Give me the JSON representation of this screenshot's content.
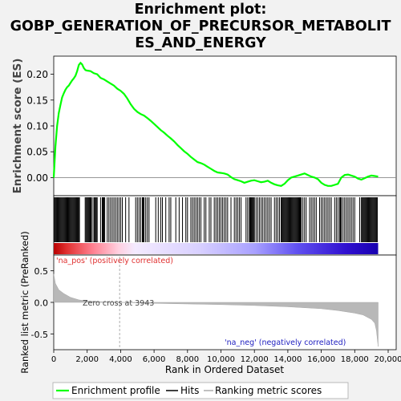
{
  "title_lines": [
    "Enrichment plot:",
    "GOBP_GENERATION_OF_PRECURSOR_METABOLIT",
    "ES_AND_ENERGY"
  ],
  "chart_data": {
    "type": "line",
    "title": "Enrichment plot: GOBP_GENERATION_OF_PRECURSOR_METABOLITES_AND_ENERGY",
    "xlabel": "Rank in Ordered Dataset",
    "xlim": [
      0,
      20000
    ],
    "x_ticks": [
      0,
      2000,
      4000,
      6000,
      8000,
      10000,
      12000,
      14000,
      16000,
      18000,
      20000
    ],
    "x_tick_labels": [
      "0",
      "2,000",
      "4,000",
      "6,000",
      "8,000",
      "10,000",
      "12,000",
      "14,000",
      "16,000",
      "18,000",
      "20,000"
    ],
    "n_genes": 19400,
    "es_panel": {
      "ylabel": "Enrichment score (ES)",
      "ylim": [
        -0.035,
        0.235
      ],
      "y_ticks": [
        0.0,
        0.05,
        0.1,
        0.15,
        0.2
      ],
      "y_tick_labels": [
        "0.00",
        "0.05",
        "0.10",
        "0.15",
        "0.20"
      ],
      "series": [
        {
          "name": "Enrichment profile",
          "color": "#00ff00",
          "x": [
            0,
            100,
            200,
            300,
            400,
            500,
            600,
            700,
            800,
            900,
            1000,
            1100,
            1200,
            1300,
            1400,
            1500,
            1600,
            1700,
            1800,
            1900,
            2000,
            2200,
            2400,
            2600,
            2800,
            3000,
            3200,
            3400,
            3600,
            3800,
            4000,
            4200,
            4400,
            4600,
            4800,
            5000,
            5200,
            5400,
            5600,
            5800,
            6000,
            6200,
            6400,
            6600,
            6800,
            7000,
            7200,
            7400,
            7600,
            7800,
            8000,
            8200,
            8400,
            8600,
            8800,
            9000,
            9200,
            9400,
            9600,
            9800,
            10000,
            10200,
            10400,
            10600,
            10800,
            11000,
            11200,
            11400,
            11600,
            11800,
            12000,
            12200,
            12400,
            12600,
            12800,
            13000,
            13200,
            13400,
            13600,
            13800,
            14000,
            14200,
            14400,
            14600,
            14800,
            15000,
            15200,
            15400,
            15600,
            15800,
            16000,
            16200,
            16400,
            16600,
            16800,
            17000,
            17200,
            17400,
            17600,
            17800,
            18000,
            18200,
            18400,
            18600,
            18800,
            19000,
            19200,
            19400
          ],
          "y": [
            0.0,
            0.06,
            0.1,
            0.125,
            0.14,
            0.155,
            0.163,
            0.17,
            0.175,
            0.178,
            0.183,
            0.188,
            0.192,
            0.197,
            0.206,
            0.218,
            0.222,
            0.219,
            0.212,
            0.208,
            0.207,
            0.206,
            0.202,
            0.2,
            0.193,
            0.19,
            0.186,
            0.182,
            0.178,
            0.172,
            0.168,
            0.162,
            0.153,
            0.142,
            0.133,
            0.127,
            0.123,
            0.12,
            0.115,
            0.11,
            0.104,
            0.098,
            0.092,
            0.087,
            0.081,
            0.076,
            0.07,
            0.063,
            0.057,
            0.051,
            0.046,
            0.04,
            0.035,
            0.03,
            0.028,
            0.025,
            0.021,
            0.017,
            0.013,
            0.01,
            0.009,
            0.008,
            0.006,
            0.001,
            -0.003,
            -0.005,
            -0.007,
            -0.01,
            -0.008,
            -0.006,
            -0.005,
            -0.007,
            -0.009,
            -0.008,
            -0.006,
            -0.01,
            -0.013,
            -0.015,
            -0.016,
            -0.012,
            -0.005,
            0.0,
            0.002,
            0.004,
            0.006,
            0.008,
            0.005,
            0.002,
            0.0,
            -0.003,
            -0.01,
            -0.014,
            -0.016,
            -0.016,
            -0.014,
            -0.012,
            0.0,
            0.005,
            0.006,
            0.004,
            0.002,
            -0.002,
            -0.004,
            -0.001,
            0.002,
            0.004,
            0.003,
            0.002
          ]
        }
      ]
    },
    "hits_legend": "Hits",
    "hits_ranks": [
      40,
      90,
      140,
      190,
      240,
      290,
      340,
      390,
      440,
      490,
      540,
      590,
      640,
      690,
      740,
      790,
      840,
      890,
      940,
      990,
      1040,
      1090,
      1140,
      1190,
      1240,
      1290,
      1340,
      1390,
      1440,
      1490,
      1540,
      1880,
      1930,
      1980,
      2030,
      2080,
      2130,
      2180,
      2230,
      2300,
      2400,
      2450,
      2500,
      2550,
      2600,
      2800,
      2900,
      2950,
      3000,
      3050,
      3200,
      3300,
      3400,
      3500,
      3600,
      3700,
      3800,
      3900,
      4000,
      4100,
      4300,
      4500,
      4900,
      5000,
      5100,
      5200,
      5300,
      5350,
      5400,
      5500,
      5600,
      5700,
      6100,
      6250,
      6400,
      6500,
      6700,
      6900,
      7000,
      7300,
      7500,
      7700,
      7900,
      8000,
      8200,
      8300,
      8400,
      8500,
      8600,
      8700,
      8800,
      9000,
      9100,
      9300,
      9400,
      9600,
      9700,
      9800,
      9900,
      10000,
      10100,
      10200,
      10300,
      10400,
      10600,
      10800,
      10900,
      11000,
      11100,
      11200,
      11500,
      11600,
      11700,
      11750,
      11800,
      11850,
      11900,
      11950,
      12000,
      12100,
      12200,
      12300,
      12400,
      12500,
      12600,
      12700,
      12800,
      12900,
      13000,
      13200,
      13300,
      13400,
      13500,
      13600,
      13650,
      13700,
      13750,
      13800,
      13850,
      13900,
      13950,
      14000,
      14050,
      14100,
      14150,
      14200,
      14250,
      14300,
      14350,
      14400,
      14450,
      14500,
      14550,
      14600,
      14650,
      14700,
      14750,
      14800,
      14900,
      15000,
      15100,
      15300,
      15400,
      15500,
      15600,
      15700,
      15900,
      16000,
      16100,
      16200,
      16300,
      16400,
      16500,
      16600,
      16800,
      16900,
      17000,
      17100,
      17150,
      17200,
      17300,
      17400,
      17500,
      17600,
      17700,
      17800,
      17900,
      18000,
      18300,
      18400,
      18450,
      18500,
      18550,
      18600,
      18650,
      18700,
      18750,
      18800,
      18850,
      18900,
      18950,
      19000,
      19050,
      19100,
      19150,
      19200,
      19250,
      19300,
      19350
    ],
    "metric_panel": {
      "ylabel": "Ranked list metric (PreRanked)",
      "series_name": "Ranking metric scores",
      "ylim": [
        -0.75,
        0.75
      ],
      "y_ticks": [
        0.5,
        0.0,
        -0.5
      ],
      "y_tick_labels": [
        "0.5",
        "0.0",
        "-0.5"
      ],
      "x": [
        0,
        100,
        300,
        600,
        1000,
        1500,
        2000,
        3000,
        3943,
        6000,
        8000,
        10000,
        12000,
        14000,
        16000,
        17000,
        18000,
        18500,
        19000,
        19200,
        19300,
        19400
      ],
      "y": [
        0.45,
        0.3,
        0.2,
        0.14,
        0.08,
        0.04,
        0.02,
        0.008,
        0.0,
        -0.015,
        -0.025,
        -0.035,
        -0.05,
        -0.07,
        -0.1,
        -0.13,
        -0.17,
        -0.2,
        -0.27,
        -0.33,
        -0.45,
        -0.7
      ],
      "pos_label": "'na_pos' (positively correlated)",
      "neg_label": "'na_neg' (negatively correlated)",
      "zero_cross_label": "Zero cross at 3943",
      "zero_cross": 3943
    },
    "legend": [
      {
        "label": "Enrichment profile",
        "color": "#00ff00"
      },
      {
        "label": "Hits",
        "color": "#000000"
      },
      {
        "label": "Ranking metric scores",
        "color": "#c0c0c0"
      }
    ]
  }
}
